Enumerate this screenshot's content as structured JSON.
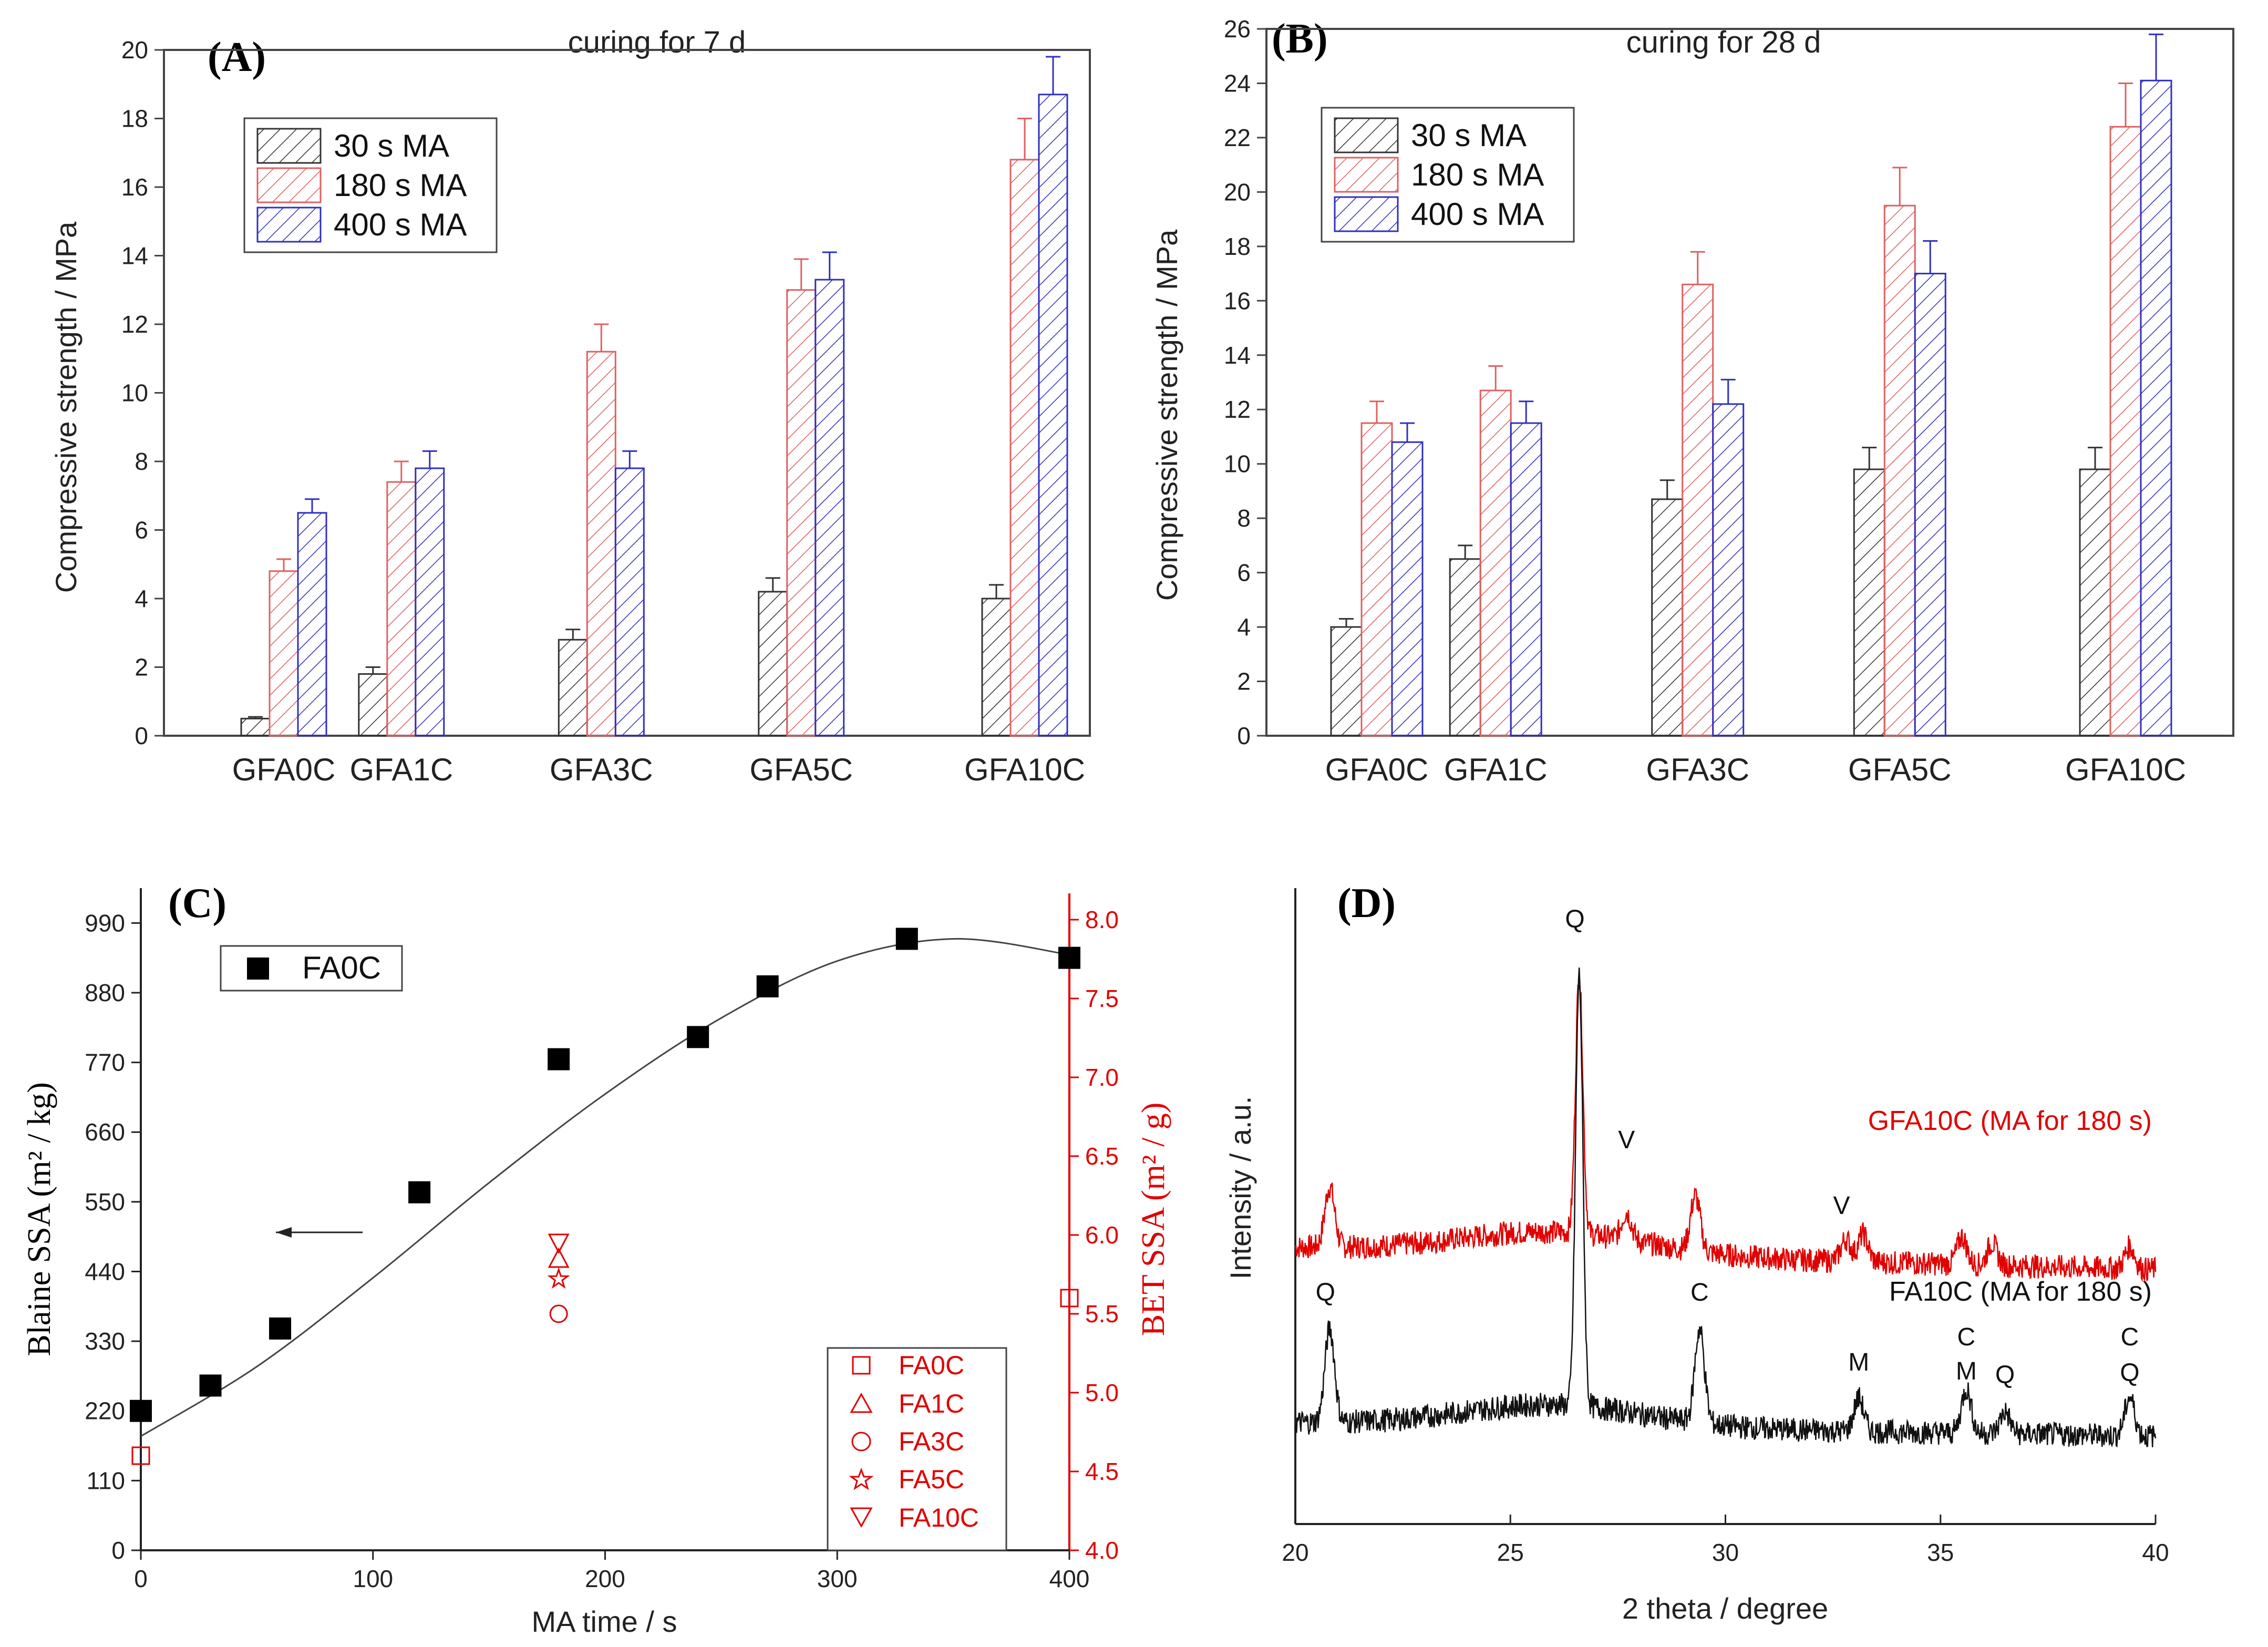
{
  "chart_data": [
    {
      "id": "A",
      "type": "bar",
      "panel_label": "(A)",
      "title": "curing for 7 d",
      "xlabel": "",
      "ylabel": "Compressive strength / MPa",
      "ylim": [
        0,
        20
      ],
      "yticks": [
        0,
        2,
        4,
        6,
        8,
        10,
        12,
        14,
        16,
        18,
        20
      ],
      "categories": [
        "GFA0C",
        "GFA1C",
        "GFA3C",
        "GFA5C",
        "GFA10C"
      ],
      "category_positions": [
        0,
        1,
        2.7,
        4.4,
        6.3
      ],
      "series": [
        {
          "name": "30 s MA",
          "color": "#333333",
          "values": [
            0.5,
            1.8,
            2.8,
            4.2,
            4.0
          ],
          "errors": [
            0.05,
            0.2,
            0.3,
            0.4,
            0.4
          ]
        },
        {
          "name": "180 s MA",
          "color": "#e06060",
          "values": [
            4.8,
            7.4,
            11.2,
            13.0,
            16.8
          ],
          "errors": [
            0.35,
            0.6,
            0.8,
            0.9,
            1.2
          ]
        },
        {
          "name": "400 s MA",
          "color": "#3030c0",
          "values": [
            6.5,
            7.8,
            7.8,
            13.3,
            18.7
          ],
          "errors": [
            0.4,
            0.5,
            0.5,
            0.8,
            1.1
          ]
        }
      ],
      "legend": "upper-left"
    },
    {
      "id": "B",
      "type": "bar",
      "panel_label": "(B)",
      "title": "curing for 28 d",
      "xlabel": "",
      "ylabel": "Compressive strength / MPa",
      "ylim": [
        0,
        26
      ],
      "yticks": [
        0,
        2,
        4,
        6,
        8,
        10,
        12,
        14,
        16,
        18,
        20,
        22,
        24,
        26
      ],
      "categories": [
        "GFA0C",
        "GFA1C",
        "GFA3C",
        "GFA5C",
        "GFA10C"
      ],
      "category_positions": [
        0,
        1,
        2.7,
        4.4,
        6.3
      ],
      "series": [
        {
          "name": "30 s MA",
          "color": "#333333",
          "values": [
            4.0,
            6.5,
            8.7,
            9.8,
            9.8
          ],
          "errors": [
            0.3,
            0.5,
            0.7,
            0.8,
            0.8
          ]
        },
        {
          "name": "180 s MA",
          "color": "#e06060",
          "values": [
            11.5,
            12.7,
            16.6,
            19.5,
            22.4
          ],
          "errors": [
            0.8,
            0.9,
            1.2,
            1.4,
            1.6
          ]
        },
        {
          "name": "400 s MA",
          "color": "#3030c0",
          "values": [
            10.8,
            11.5,
            12.2,
            17.0,
            24.1
          ],
          "errors": [
            0.7,
            0.8,
            0.9,
            1.2,
            1.7
          ]
        }
      ],
      "legend": "upper-left"
    },
    {
      "id": "C",
      "type": "scatter",
      "panel_label": "(C)",
      "xlabel": "MA time / s",
      "ylabel": "Blaine SSA (m² / kg)",
      "y2label": "BET SSA (m² / g)",
      "xlim": [
        0,
        400
      ],
      "xticks": [
        0,
        100,
        200,
        300,
        400
      ],
      "ylim": [
        0,
        1045
      ],
      "yticks": [
        0,
        110,
        220,
        330,
        440,
        550,
        660,
        770,
        880,
        990
      ],
      "y2lim": [
        4.0,
        8.2
      ],
      "y2ticks": [
        4.0,
        4.5,
        5.0,
        5.5,
        6.0,
        6.5,
        7.0,
        7.5,
        8.0
      ],
      "blaine": {
        "name": "FA0C",
        "x": [
          0,
          30,
          60,
          120,
          180,
          240,
          270,
          330,
          400
        ],
        "y": [
          220,
          260,
          350,
          565,
          775,
          810,
          890,
          965,
          935
        ]
      },
      "fit_curve": {
        "x": [
          0,
          50,
          100,
          150,
          200,
          250,
          300,
          350,
          400
        ],
        "y": [
          180,
          290,
          430,
          580,
          720,
          840,
          930,
          965,
          940
        ]
      },
      "bet": [
        {
          "name": "FA0C",
          "marker": "square",
          "points": [
            [
              0,
              4.6
            ],
            [
              400,
              5.6
            ]
          ]
        },
        {
          "name": "FA1C",
          "marker": "triangle",
          "points": [
            [
              180,
              5.85
            ]
          ]
        },
        {
          "name": "FA3C",
          "marker": "circle",
          "points": [
            [
              180,
              5.5
            ]
          ]
        },
        {
          "name": "FA5C",
          "marker": "star",
          "points": [
            [
              180,
              5.72
            ]
          ]
        },
        {
          "name": "FA10C",
          "marker": "triangle-down",
          "points": [
            [
              180,
              5.95
            ]
          ]
        }
      ],
      "legend_left": "upper-left",
      "legend_right": "lower-right"
    },
    {
      "id": "D",
      "type": "line",
      "panel_label": "(D)",
      "xlabel": "2 theta / degree",
      "ylabel": "Intensity / a.u.",
      "xlim": [
        20,
        40
      ],
      "xticks": [
        20,
        25,
        30,
        35,
        40
      ],
      "series": [
        {
          "name": "GFA10C (MA for 180 s)",
          "color": "#e00000",
          "offset": 1.55,
          "peaks": [
            [
              20.8,
              0.55
            ],
            [
              26.6,
              2.35
            ],
            [
              27.7,
              0.25
            ],
            [
              29.3,
              0.5
            ],
            [
              32.8,
              0.2
            ],
            [
              33.2,
              0.25
            ],
            [
              35.5,
              0.25
            ],
            [
              36.2,
              0.2
            ],
            [
              39.4,
              0.2
            ]
          ]
        },
        {
          "name": "FA10C (MA for 180 s)",
          "color": "#111111",
          "offset": 0.0,
          "peaks": [
            [
              20.8,
              0.85
            ],
            [
              26.6,
              3.9
            ],
            [
              29.4,
              0.85
            ],
            [
              33.1,
              0.3
            ],
            [
              35.6,
              0.4
            ],
            [
              36.5,
              0.2
            ],
            [
              39.4,
              0.35
            ]
          ]
        }
      ],
      "annotations": [
        {
          "text": "Q",
          "x": 26.5
        },
        {
          "text": "V",
          "x": 27.7
        },
        {
          "text": "V",
          "x": 32.7
        },
        {
          "text": "Q",
          "x": 20.7
        },
        {
          "text": "C",
          "x": 29.4
        },
        {
          "text": "M",
          "x": 33.1
        },
        {
          "text": "C",
          "x": 35.6
        },
        {
          "text": "M",
          "x": 35.6
        },
        {
          "text": "Q",
          "x": 36.5
        },
        {
          "text": "C",
          "x": 39.4
        },
        {
          "text": "Q",
          "x": 39.4
        }
      ]
    }
  ]
}
